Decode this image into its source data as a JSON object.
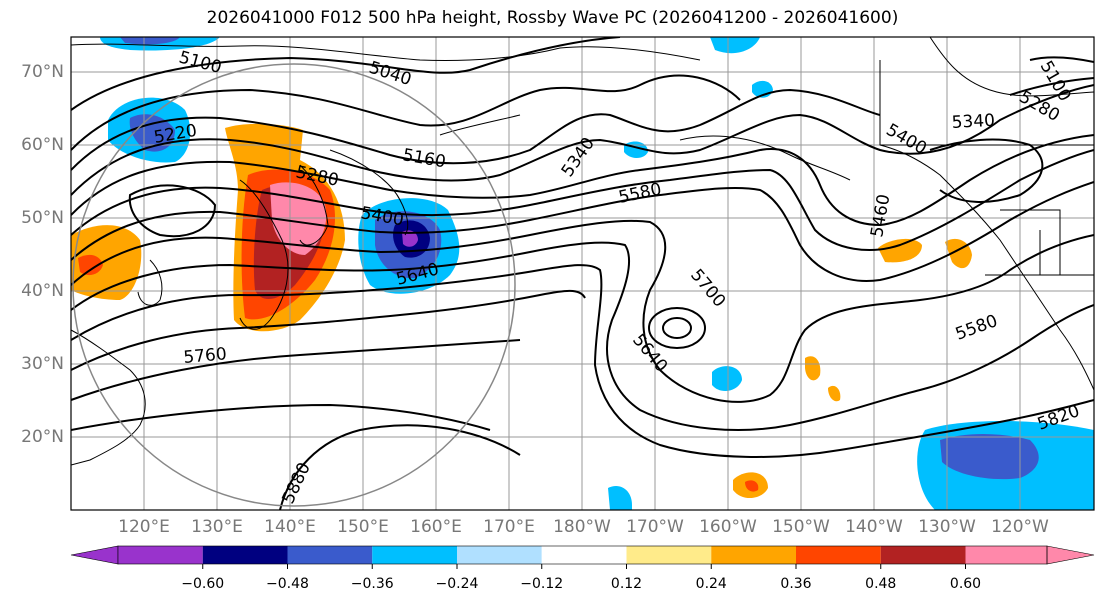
{
  "title": "2026041000 F012 500 hPa height, Rossby Wave PC (2026041200 - 2026041600)",
  "lat_labels": [
    "70°N",
    "60°N",
    "50°N",
    "40°N",
    "30°N",
    "20°N"
  ],
  "lon_labels": [
    "120°E",
    "130°E",
    "140°E",
    "150°E",
    "160°E",
    "170°E",
    "180°W",
    "170°W",
    "160°W",
    "150°W",
    "140°W",
    "130°W",
    "120°W"
  ],
  "contour_labels": [
    "5100",
    "5040",
    "5220",
    "5160",
    "5280",
    "5400",
    "5340",
    "5580",
    "5640",
    "5700",
    "5640",
    "5760",
    "5460",
    "5400",
    "5580",
    "5820",
    "5880",
    "5340",
    "5280",
    "5100"
  ],
  "colorbar": {
    "tick_labels": [
      "−0.60",
      "−0.48",
      "−0.36",
      "−0.24",
      "−0.12",
      "0.12",
      "0.24",
      "0.36",
      "0.48",
      "0.60"
    ],
    "colors": [
      "#9933cc",
      "#000080",
      "#3a5bcc",
      "#00bfff",
      "#b0e0ff",
      "#ffffff",
      "#ffeb8a",
      "#ffa500",
      "#ff4500",
      "#b22222",
      "#ff88aa"
    ]
  },
  "shading_colors": {
    "purple": "#9933cc",
    "navy": "#000080",
    "blue": "#3a5bcc",
    "cyan": "#00bfff",
    "light_blue": "#b0e0ff",
    "yellow": "#ffeb8a",
    "orange": "#ffa500",
    "red_orange": "#ff4500",
    "dark_red": "#b22222",
    "pink": "#ff88aa"
  }
}
